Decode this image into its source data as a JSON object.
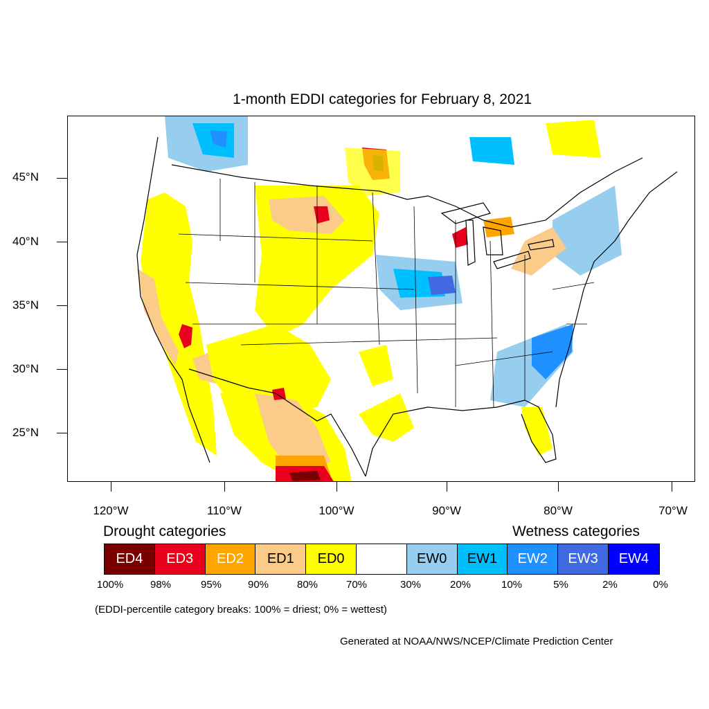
{
  "title": "1-month EDDI categories for February 8, 2021",
  "latitude_labels": [
    "45°N",
    "40°N",
    "35°N",
    "30°N",
    "25°N"
  ],
  "longitude_labels": [
    "120°W",
    "110°W",
    "100°W",
    "90°W",
    "80°W",
    "70°W"
  ],
  "legend": {
    "drought_title": "Drought categories",
    "wetness_title": "Wetness categories",
    "categories": [
      {
        "label": "ED4",
        "color": "#7a0000",
        "text_color": "#ffffff"
      },
      {
        "label": "ED3",
        "color": "#e8001c",
        "text_color": "#ffffff"
      },
      {
        "label": "ED2",
        "color": "#ffa500",
        "text_color": "#ffffff"
      },
      {
        "label": "ED1",
        "color": "#fbcb8a",
        "text_color": "#000000"
      },
      {
        "label": "ED0",
        "color": "#ffff00",
        "text_color": "#000000"
      },
      {
        "label": "",
        "color": "#ffffff",
        "text_color": "#000000"
      },
      {
        "label": "EW0",
        "color": "#97cdee",
        "text_color": "#000000"
      },
      {
        "label": "EW1",
        "color": "#00bfff",
        "text_color": "#000000"
      },
      {
        "label": "EW2",
        "color": "#1e90ff",
        "text_color": "#ffffff"
      },
      {
        "label": "EW3",
        "color": "#4169e1",
        "text_color": "#ffffff"
      },
      {
        "label": "EW4",
        "color": "#0000ff",
        "text_color": "#ffffff"
      }
    ],
    "percent_breaks": [
      "100%",
      "98%",
      "95%",
      "90%",
      "80%",
      "70%",
      "30%",
      "20%",
      "10%",
      "5%",
      "2%",
      "0%"
    ]
  },
  "note": "(EDDI-percentile category breaks: 100% = driest; 0% = wettest)",
  "credit": "Generated at NOAA/NWS/NCEP/Climate Prediction Center"
}
